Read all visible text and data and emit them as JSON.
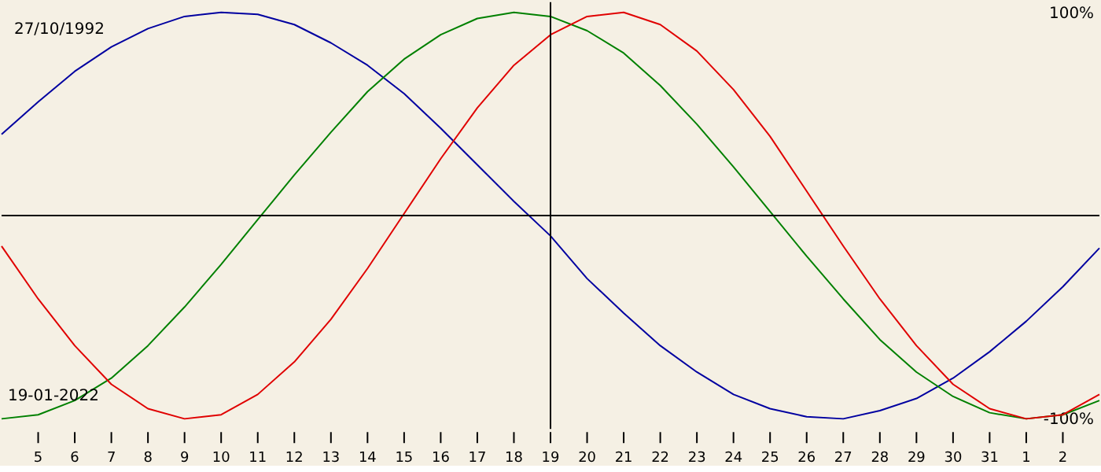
{
  "chart_data": {
    "type": "line",
    "x": [
      "2022-01-04",
      "2022-01-05",
      "2022-01-06",
      "2022-01-07",
      "2022-01-08",
      "2022-01-09",
      "2022-01-10",
      "2022-01-11",
      "2022-01-12",
      "2022-01-13",
      "2022-01-14",
      "2022-01-15",
      "2022-01-16",
      "2022-01-17",
      "2022-01-18",
      "2022-01-19",
      "2022-01-20",
      "2022-01-21",
      "2022-01-22",
      "2022-01-23",
      "2022-01-24",
      "2022-01-25",
      "2022-01-26",
      "2022-01-27",
      "2022-01-28",
      "2022-01-29",
      "2022-01-30",
      "2022-01-31",
      "2022-02-01",
      "2022-02-02",
      "2022-02-03"
    ],
    "series": [
      {
        "color": "#0000a0",
        "values": [
          40,
          56,
          71,
          83,
          92,
          98,
          100,
          99,
          94,
          85,
          74,
          60,
          43,
          25,
          7,
          -10,
          -31,
          -48,
          -64,
          -77,
          -88,
          -95,
          -99,
          -100,
          -96,
          -90,
          -80,
          -67,
          -52,
          -35,
          -16
        ]
      },
      {
        "color": "#008000",
        "values": [
          -100,
          -98,
          -91,
          -80,
          -64,
          -45,
          -24,
          -2,
          20,
          41,
          61,
          77,
          89,
          97,
          100,
          98,
          91,
          80,
          64,
          45,
          24,
          2,
          -20,
          -41,
          -61,
          -77,
          -89,
          -97,
          -100,
          -98,
          -91
        ]
      },
      {
        "color": "#e00000",
        "values": [
          -15,
          -41,
          -64,
          -83,
          -95,
          -100,
          -98,
          -88,
          -72,
          -51,
          -26,
          1,
          28,
          53,
          74,
          89,
          98,
          100,
          94,
          81,
          62,
          39,
          12,
          -15,
          -41,
          -64,
          -83,
          -95,
          -100,
          -98,
          -88
        ]
      }
    ],
    "xlim": [
      "2022-01-04",
      "2022-02-03"
    ],
    "xticks": [
      {
        "value": "2022-01-05",
        "label": "5"
      },
      {
        "value": "2022-01-06",
        "label": "6"
      },
      {
        "value": "2022-01-07",
        "label": "7"
      },
      {
        "value": "2022-01-08",
        "label": "8"
      },
      {
        "value": "2022-01-09",
        "label": "9"
      },
      {
        "value": "2022-01-10",
        "label": "10"
      },
      {
        "value": "2022-01-11",
        "label": "11"
      },
      {
        "value": "2022-01-12",
        "label": "12"
      },
      {
        "value": "2022-01-13",
        "label": "13"
      },
      {
        "value": "2022-01-14",
        "label": "14"
      },
      {
        "value": "2022-01-15",
        "label": "15"
      },
      {
        "value": "2022-01-16",
        "label": "16"
      },
      {
        "value": "2022-01-17",
        "label": "17"
      },
      {
        "value": "2022-01-18",
        "label": "18"
      },
      {
        "value": "2022-01-19",
        "label": "19"
      },
      {
        "value": "2022-01-20",
        "label": "20"
      },
      {
        "value": "2022-01-21",
        "label": "21"
      },
      {
        "value": "2022-01-22",
        "label": "22"
      },
      {
        "value": "2022-01-23",
        "label": "23"
      },
      {
        "value": "2022-01-24",
        "label": "24"
      },
      {
        "value": "2022-01-25",
        "label": "25"
      },
      {
        "value": "2022-01-26",
        "label": "26"
      },
      {
        "value": "2022-01-27",
        "label": "27"
      },
      {
        "value": "2022-01-28",
        "label": "28"
      },
      {
        "value": "2022-01-29",
        "label": "29"
      },
      {
        "value": "2022-01-30",
        "label": "30"
      },
      {
        "value": "2022-01-31",
        "label": "31"
      },
      {
        "value": "2022-02-01",
        "label": "1"
      },
      {
        "value": "2022-02-02",
        "label": "2"
      }
    ],
    "ylim": [
      -105,
      105
    ],
    "yticks": [
      {
        "value": -100,
        "label": "-100%"
      },
      {
        "value": 100,
        "label": "100%"
      }
    ],
    "ref_lines": [
      {
        "axis": "x",
        "value": "2022-01-19",
        "color": "#000000"
      },
      {
        "axis": "y",
        "value": 0,
        "color": "#000000"
      }
    ],
    "annotations": [
      "27/10/1992",
      "19-01-2022"
    ],
    "grid": false,
    "marker": "none",
    "line_style": "solid"
  }
}
